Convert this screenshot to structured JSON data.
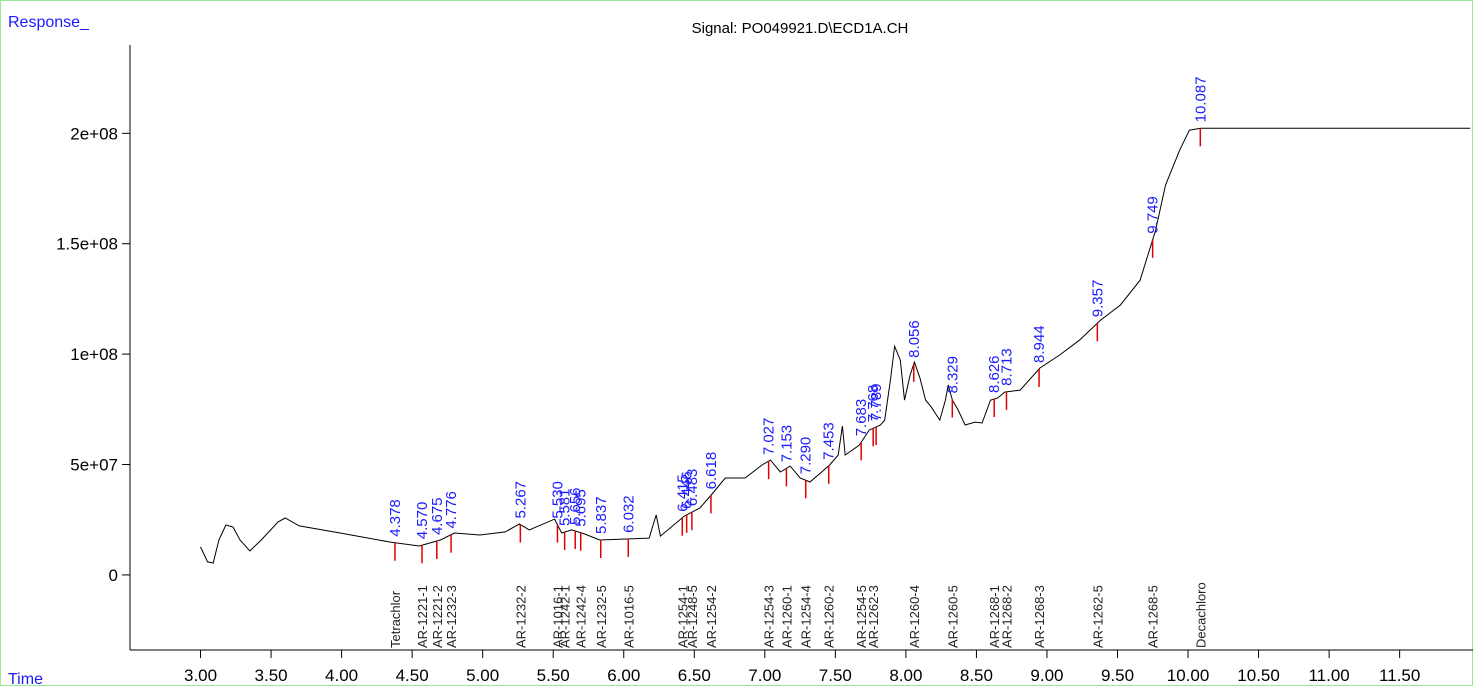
{
  "chart_data": {
    "type": "line",
    "title": "Signal: PO049921.D\\ECD1A.CH",
    "ylabel": "Response_",
    "xlabel": "Time",
    "color": "#000000",
    "x": [
      3.0,
      3.05,
      3.09,
      3.13,
      3.18,
      3.23,
      3.28,
      3.35,
      3.43,
      3.55,
      3.6,
      3.7,
      3.99,
      4.34,
      4.55,
      4.7,
      4.8,
      4.98,
      5.16,
      5.26,
      5.33,
      5.51,
      5.56,
      5.63,
      5.72,
      5.83,
      6.18,
      6.23,
      6.26,
      6.43,
      6.54,
      6.62,
      6.72,
      6.86,
      6.98,
      7.04,
      7.11,
      7.18,
      7.25,
      7.32,
      7.46,
      7.52,
      7.55,
      7.57,
      7.67,
      7.74,
      7.82,
      7.85,
      7.89,
      7.92,
      7.96,
      7.99,
      8.03,
      8.06,
      8.1,
      8.14,
      8.18,
      8.24,
      8.28,
      8.3,
      8.33,
      8.37,
      8.42,
      8.49,
      8.54,
      8.6,
      8.65,
      8.7,
      8.81,
      8.95,
      9.09,
      9.23,
      9.38,
      9.52,
      9.66,
      9.77,
      9.84,
      9.94,
      10.01,
      10.09,
      12.0
    ],
    "values": [
      12700000,
      5900000,
      5400000,
      15800000,
      22600000,
      21700000,
      15800000,
      10900000,
      15800000,
      24000000,
      25800000,
      22200000,
      19000000,
      14900000,
      13100000,
      15800000,
      19000000,
      18100000,
      19500000,
      23100000,
      20400000,
      25300000,
      19000000,
      20400000,
      18600000,
      15800000,
      16700000,
      27200000,
      17600000,
      26700000,
      30300000,
      36200000,
      43900000,
      43900000,
      49800000,
      52000000,
      46600000,
      49300000,
      43900000,
      42100000,
      49800000,
      54300000,
      67400000,
      54300000,
      58800000,
      65600000,
      67900000,
      70100000,
      88200000,
      103600000,
      97300000,
      79200000,
      90500000,
      96400000,
      89100000,
      79200000,
      76000000,
      70100000,
      79200000,
      86000000,
      79200000,
      74700000,
      67900000,
      69200000,
      68800000,
      79200000,
      80100000,
      82800000,
      83700000,
      93700000,
      99600000,
      106300000,
      115400000,
      122200000,
      133500000,
      156100000,
      176500000,
      192300000,
      201400000,
      202300000,
      202300000
    ],
    "peak_color": "#1a1aff",
    "baseline_color": "#e00000",
    "peak_times": [
      4.378,
      4.57,
      4.675,
      4.776,
      5.267,
      5.53,
      5.581,
      5.656,
      5.695,
      5.837,
      6.032,
      6.415,
      6.446,
      6.483,
      6.618,
      7.027,
      7.153,
      7.29,
      7.453,
      7.683,
      7.768,
      7.789,
      8.056,
      8.329,
      8.626,
      8.713,
      8.944,
      9.357,
      9.749,
      10.087
    ],
    "peak_time_labels": [
      "4.378",
      "4.570",
      "4.675",
      "4.776",
      "5.267",
      "5.530",
      "5.581",
      "5.656",
      "5.695",
      "5.837",
      "6.032",
      "6.415",
      "6.446",
      "6.483",
      "6.618",
      "7.027",
      "7.153",
      "7.290",
      "7.453",
      "7.683",
      "7.768",
      "7.789",
      "8.056",
      "8.329",
      "8.626",
      "8.713",
      "8.944",
      "9.357",
      "9.749",
      "10.087"
    ],
    "compounds": [
      {
        "name": "Tetrachlor",
        "time": 4.378
      },
      {
        "name": "AR-1221-1",
        "time": 4.57
      },
      {
        "name": "AR-1221-2",
        "time": 4.675
      },
      {
        "name": "AR-1232-3",
        "time": 4.776
      },
      {
        "name": "AR-1232-2",
        "time": 5.267
      },
      {
        "name": "AR-1016-1",
        "time": 5.53
      },
      {
        "name": "AR-1242-1",
        "time": 5.581
      },
      {
        "name": "AR-1242-4",
        "time": 5.695
      },
      {
        "name": "AR-1232-5",
        "time": 5.837
      },
      {
        "name": "AR-1016-5",
        "time": 6.032
      },
      {
        "name": "AR-1254-1",
        "time": 6.415
      },
      {
        "name": "AR-1248-5",
        "time": 6.483
      },
      {
        "name": "AR-1254-2",
        "time": 6.618
      },
      {
        "name": "AR-1254-3",
        "time": 7.027
      },
      {
        "name": "AR-1260-1",
        "time": 7.153
      },
      {
        "name": "AR-1254-4",
        "time": 7.29
      },
      {
        "name": "AR-1260-2",
        "time": 7.453
      },
      {
        "name": "AR-1254-5",
        "time": 7.683
      },
      {
        "name": "AR-1262-3",
        "time": 7.768
      },
      {
        "name": "AR-1260-4",
        "time": 8.056
      },
      {
        "name": "AR-1260-5",
        "time": 8.329
      },
      {
        "name": "AR-1268-1",
        "time": 8.626
      },
      {
        "name": "AR-1268-2",
        "time": 8.713
      },
      {
        "name": "AR-1268-3",
        "time": 8.944
      },
      {
        "name": "AR-1262-5",
        "time": 9.357
      },
      {
        "name": "AR-1268-5",
        "time": 9.749
      },
      {
        "name": "Decachloro",
        "time": 10.087
      }
    ],
    "xlim": [
      2.5,
      12.02
    ],
    "ylim": [
      -34000000,
      240000000
    ],
    "xticks": [
      {
        "value": 3,
        "label": "3.00"
      },
      {
        "value": 3.5,
        "label": "3.50"
      },
      {
        "value": 4,
        "label": "4.00"
      },
      {
        "value": 4.5,
        "label": "4.50"
      },
      {
        "value": 5,
        "label": "5.00"
      },
      {
        "value": 5.5,
        "label": "5.50"
      },
      {
        "value": 6,
        "label": "6.00"
      },
      {
        "value": 6.5,
        "label": "6.50"
      },
      {
        "value": 7,
        "label": "7.00"
      },
      {
        "value": 7.5,
        "label": "7.50"
      },
      {
        "value": 8,
        "label": "8.00"
      },
      {
        "value": 8.5,
        "label": "8.50"
      },
      {
        "value": 9,
        "label": "9.00"
      },
      {
        "value": 9.5,
        "label": "9.50"
      },
      {
        "value": 10,
        "label": "10.00"
      },
      {
        "value": 10.5,
        "label": "10.50"
      },
      {
        "value": 11,
        "label": "11.00"
      },
      {
        "value": 11.5,
        "label": "11.50"
      }
    ],
    "yticks": [
      0,
      {
        "value": 50000000,
        "label": "5e+07"
      },
      {
        "value": 100000000,
        "label": "1e+08"
      },
      {
        "value": 150000000,
        "label": "1.5e+08"
      },
      {
        "value": 200000000,
        "label": "2e+08"
      }
    ]
  }
}
